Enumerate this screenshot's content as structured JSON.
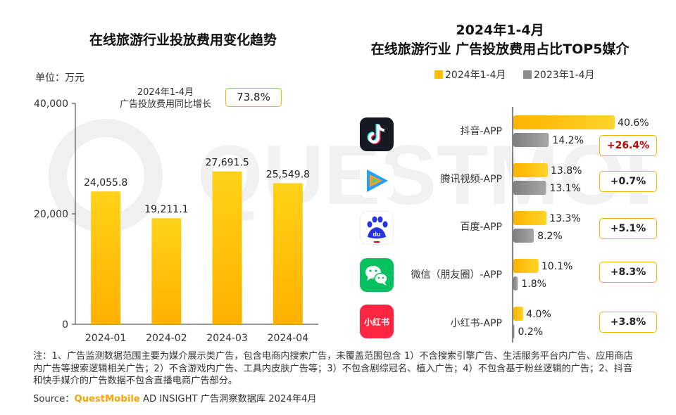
{
  "left_title": "在线旅游行业投放费用变化趋势",
  "unit_label": "单位：万元",
  "growth": {
    "label_line1": "2024年1-4月",
    "label_line2": "广告投放费用同比增长",
    "value": "73.8%"
  },
  "right_title": {
    "line1": "2024年1-4月",
    "line2": "在线旅游行业 广告投放费用占比TOP5媒介"
  },
  "legend": {
    "current": "2024年1-4月",
    "previous": "2023年1-4月"
  },
  "colors": {
    "bar_yellow": "#ffc000",
    "bar_gray": "#8c8c8c",
    "delta_border": "#f2b300",
    "delta_red": "#c00000",
    "brand": "#f7a600"
  },
  "apps": [
    {
      "label": "抖音-APP",
      "icon": "douyin-icon",
      "delta": "+26.4%"
    },
    {
      "label": "腾讯视频-APP",
      "icon": "tencent-video-icon",
      "delta": "+0.7%"
    },
    {
      "label": "百度-APP",
      "icon": "baidu-icon",
      "delta": "+5.1%"
    },
    {
      "label": "微信（朋友圈）-APP",
      "icon": "wechat-icon",
      "delta": "+8.3%"
    },
    {
      "label": "小红书-APP",
      "icon": "xiaohongshu-icon",
      "icon_text": "小红书",
      "delta": "+3.8%"
    }
  ],
  "chart_data": [
    {
      "type": "bar",
      "title": "在线旅游行业投放费用变化趋势",
      "ylabel": "单位：万元",
      "categories": [
        "2024-01",
        "2024-02",
        "2024-03",
        "2024-04"
      ],
      "values": [
        24055.8,
        19211.1,
        27691.5,
        25549.8
      ],
      "value_labels": [
        "24,055.8",
        "19,211.1",
        "27,691.5",
        "25,549.8"
      ],
      "yticks": [
        0,
        20000,
        40000
      ],
      "ytick_labels": [
        "0",
        "20,000",
        "40,000"
      ],
      "ylim": [
        0,
        40000
      ]
    },
    {
      "type": "bar",
      "orientation": "horizontal",
      "title": "2024年1-4月 在线旅游行业 广告投放费用占比TOP5媒介",
      "categories": [
        "抖音-APP",
        "腾讯视频-APP",
        "百度-APP",
        "微信（朋友圈）-APP",
        "小红书-APP"
      ],
      "series": [
        {
          "name": "2024年1-4月",
          "values": [
            40.6,
            13.8,
            13.3,
            10.1,
            4.0
          ],
          "labels": [
            "40.6%",
            "13.8%",
            "13.3%",
            "10.1%",
            "4.0%"
          ]
        },
        {
          "name": "2023年1-4月",
          "values": [
            14.2,
            13.1,
            8.2,
            1.8,
            0.2
          ],
          "labels": [
            "14.2%",
            "13.1%",
            "8.2%",
            "1.8%",
            "0.2%"
          ]
        }
      ]
    }
  ],
  "note": "注：1、广告监测数据范围主要为媒介展示类广告，包含电商内搜索广告，未覆盖范围包含 1）不含搜索引擎广告、生活服务平台内广告、应用商店内广告等搜索逻辑相关广告；2）不含游戏内广告、工具内皮肤广告等；3）不包含剧综冠名、植入广告；4）不包含基于粉丝逻辑的广告；2、抖音和快手媒介的广告数据不包含直播电商广告部分。",
  "source": {
    "prefix": "Source：",
    "brand": "QuestMobile",
    "suffix": " AD INSIGHT 广告洞察数据库 2024年4月"
  },
  "watermark": "QUESTMOBILE"
}
